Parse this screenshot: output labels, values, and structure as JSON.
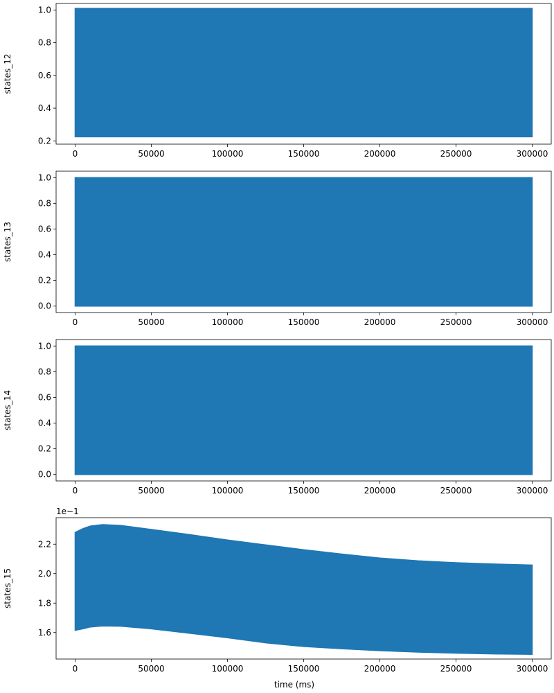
{
  "figure": {
    "xlabel": "time (ms)"
  },
  "chart_data": [
    {
      "type": "area",
      "ylabel": "states_12",
      "x_range": [
        -12500,
        312500
      ],
      "ylim": [
        0.18,
        1.04
      ],
      "xticks": [
        0,
        50000,
        100000,
        150000,
        200000,
        250000,
        300000
      ],
      "yticks": [
        0.2,
        0.4,
        0.6,
        0.8,
        1.0
      ],
      "ytick_labels": [
        "0.2",
        "0.4",
        "0.6",
        "0.8",
        "1.0"
      ],
      "offset_label": "",
      "band": {
        "x_start": 0,
        "x_end": 300000,
        "upper": [
          1.01,
          1.01
        ],
        "lower": [
          0.225,
          0.225
        ],
        "upper_points": [
          [
            0,
            1.01
          ],
          [
            300000,
            1.01
          ]
        ],
        "lower_points": [
          [
            0,
            0.225
          ],
          [
            300000,
            0.225
          ]
        ]
      }
    },
    {
      "type": "area",
      "ylabel": "states_13",
      "x_range": [
        -12500,
        312500
      ],
      "ylim": [
        -0.05,
        1.05
      ],
      "xticks": [
        0,
        50000,
        100000,
        150000,
        200000,
        250000,
        300000
      ],
      "yticks": [
        0.0,
        0.2,
        0.4,
        0.6,
        0.8,
        1.0
      ],
      "ytick_labels": [
        "0.0",
        "0.2",
        "0.4",
        "0.6",
        "0.8",
        "1.0"
      ],
      "offset_label": "",
      "band": {
        "upper_points": [
          [
            0,
            1.0
          ],
          [
            300000,
            1.0
          ]
        ],
        "lower_points": [
          [
            0,
            0.0
          ],
          [
            300000,
            0.0
          ]
        ]
      }
    },
    {
      "type": "area",
      "ylabel": "states_14",
      "x_range": [
        -12500,
        312500
      ],
      "ylim": [
        -0.05,
        1.05
      ],
      "xticks": [
        0,
        50000,
        100000,
        150000,
        200000,
        250000,
        300000
      ],
      "yticks": [
        0.0,
        0.2,
        0.4,
        0.6,
        0.8,
        1.0
      ],
      "ytick_labels": [
        "0.0",
        "0.2",
        "0.4",
        "0.6",
        "0.8",
        "1.0"
      ],
      "offset_label": "",
      "band": {
        "upper_points": [
          [
            0,
            1.0
          ],
          [
            300000,
            1.0
          ]
        ],
        "lower_points": [
          [
            0,
            0.0
          ],
          [
            300000,
            0.0
          ]
        ]
      }
    },
    {
      "type": "area",
      "ylabel": "states_15",
      "x_range": [
        -12500,
        312500
      ],
      "ylim": [
        1.42,
        2.38
      ],
      "xticks": [
        0,
        50000,
        100000,
        150000,
        200000,
        250000,
        300000
      ],
      "yticks": [
        1.6,
        1.8,
        2.0,
        2.2
      ],
      "ytick_labels": [
        "1.6",
        "1.8",
        "2.0",
        "2.2"
      ],
      "offset_label": "1e−1",
      "band": {
        "upper_points": [
          [
            0,
            2.28
          ],
          [
            5000,
            2.305
          ],
          [
            10000,
            2.323
          ],
          [
            18000,
            2.333
          ],
          [
            30000,
            2.327
          ],
          [
            50000,
            2.3
          ],
          [
            75000,
            2.265
          ],
          [
            100000,
            2.228
          ],
          [
            125000,
            2.195
          ],
          [
            150000,
            2.162
          ],
          [
            175000,
            2.133
          ],
          [
            200000,
            2.106
          ],
          [
            225000,
            2.087
          ],
          [
            250000,
            2.074
          ],
          [
            275000,
            2.065
          ],
          [
            300000,
            2.058
          ]
        ],
        "lower_points": [
          [
            0,
            1.615
          ],
          [
            5000,
            1.625
          ],
          [
            10000,
            1.638
          ],
          [
            18000,
            1.645
          ],
          [
            30000,
            1.643
          ],
          [
            50000,
            1.625
          ],
          [
            75000,
            1.595
          ],
          [
            100000,
            1.565
          ],
          [
            125000,
            1.53
          ],
          [
            150000,
            1.505
          ],
          [
            175000,
            1.49
          ],
          [
            200000,
            1.477
          ],
          [
            225000,
            1.467
          ],
          [
            250000,
            1.46
          ],
          [
            275000,
            1.455
          ],
          [
            300000,
            1.452
          ]
        ]
      }
    }
  ]
}
